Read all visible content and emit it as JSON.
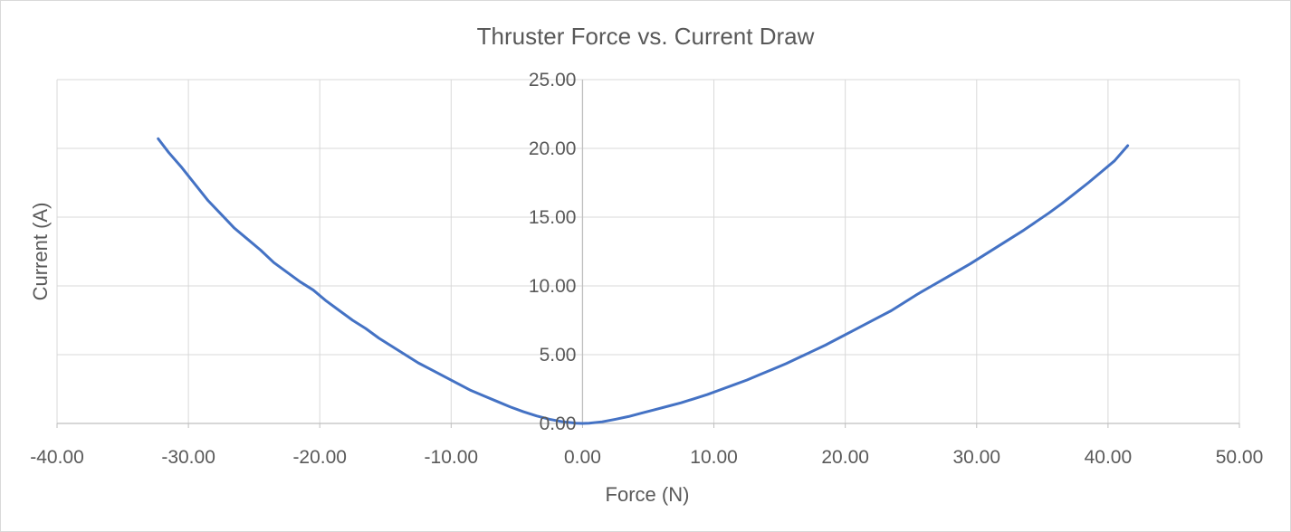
{
  "chart_data": {
    "type": "scatter",
    "title": "Thruster Force vs. Current Draw",
    "xlabel": "Force (N)",
    "ylabel": "Current (A)",
    "xlim": [
      -40,
      50
    ],
    "ylim": [
      0,
      25
    ],
    "x_ticks": [
      "-40.00",
      "-30.00",
      "-20.00",
      "-10.00",
      "0.00",
      "10.00",
      "20.00",
      "30.00",
      "40.00",
      "50.00"
    ],
    "y_ticks": [
      "0.00",
      "5.00",
      "10.00",
      "15.00",
      "20.00",
      "25.00"
    ],
    "grid": true,
    "line_style": "smooth line",
    "series": [
      {
        "color": "#4472C4",
        "x": [
          -32.3,
          -31.5,
          -30.5,
          -29.5,
          -28.5,
          -27.5,
          -26.5,
          -25.5,
          -24.5,
          -23.5,
          -22.5,
          -21.5,
          -20.5,
          -19.5,
          -18.5,
          -17.5,
          -16.5,
          -15.5,
          -14.5,
          -13.5,
          -12.5,
          -11.5,
          -10.5,
          -9.5,
          -8.5,
          -7.5,
          -6.5,
          -5.5,
          -4.5,
          -3.5,
          -2.5,
          -1.5,
          -0.5,
          0,
          0.5,
          1.5,
          2.5,
          3.5,
          4.5,
          5.5,
          6.5,
          7.5,
          8.5,
          9.5,
          10.5,
          11.5,
          12.5,
          13.5,
          14.5,
          15.5,
          16.5,
          17.5,
          18.5,
          19.5,
          20.5,
          21.5,
          22.5,
          23.5,
          24.5,
          25.5,
          26.5,
          27.5,
          28.5,
          29.5,
          30.5,
          31.5,
          32.5,
          33.5,
          34.5,
          35.5,
          36.5,
          37.5,
          38.5,
          39.5,
          40.5,
          41.5
        ],
        "y": [
          20.7,
          19.7,
          18.6,
          17.4,
          16.2,
          15.2,
          14.2,
          13.4,
          12.6,
          11.7,
          11.0,
          10.3,
          9.7,
          8.9,
          8.2,
          7.5,
          6.9,
          6.2,
          5.6,
          5.0,
          4.4,
          3.9,
          3.4,
          2.9,
          2.4,
          2.0,
          1.6,
          1.2,
          0.85,
          0.55,
          0.3,
          0.12,
          0.02,
          0.0,
          0.02,
          0.12,
          0.3,
          0.5,
          0.75,
          1.0,
          1.25,
          1.5,
          1.8,
          2.1,
          2.45,
          2.8,
          3.15,
          3.55,
          3.95,
          4.35,
          4.8,
          5.25,
          5.7,
          6.2,
          6.7,
          7.2,
          7.7,
          8.2,
          8.8,
          9.4,
          9.95,
          10.5,
          11.05,
          11.6,
          12.2,
          12.8,
          13.4,
          14.0,
          14.65,
          15.3,
          16.0,
          16.75,
          17.5,
          18.3,
          19.1,
          20.2
        ]
      }
    ]
  }
}
